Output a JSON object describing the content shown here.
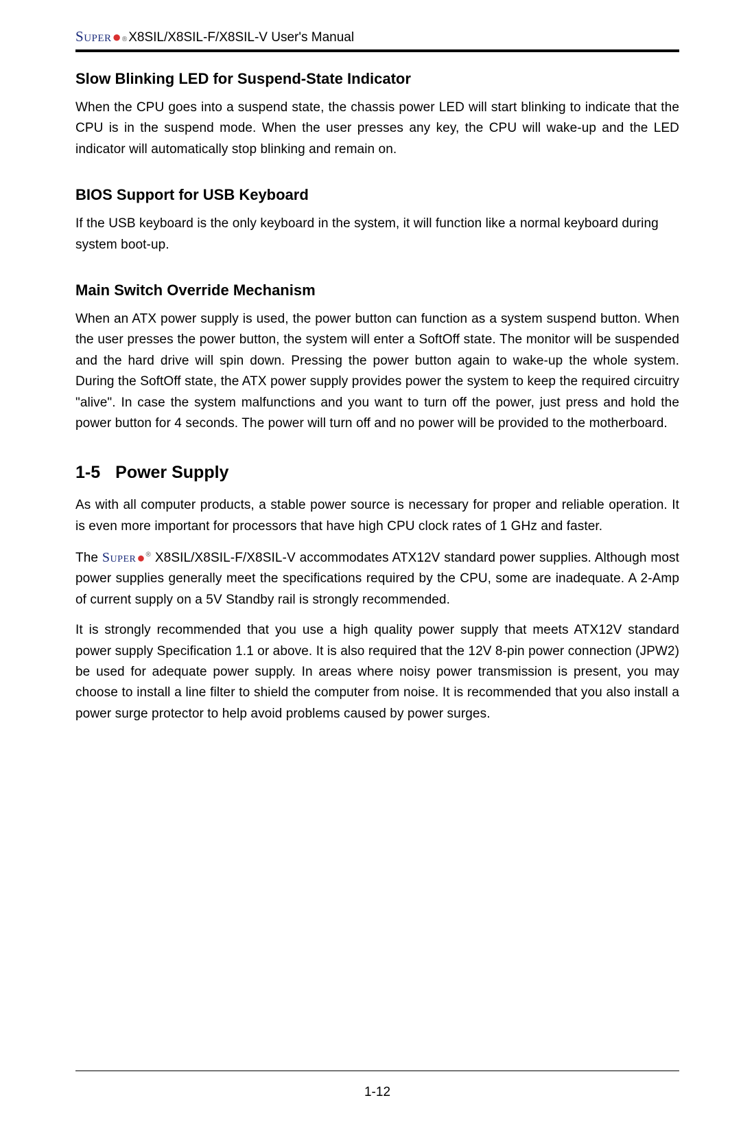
{
  "header": {
    "logo_text": "SUPER",
    "manual_title": "X8SIL/X8SIL-F/X8SIL-V User's Manual"
  },
  "sections": [
    {
      "heading": "Slow Blinking LED for Suspend-State Indicator",
      "paragraphs": [
        "When the CPU goes into a suspend state, the chassis power LED will start blinking to indicate that the CPU is in the suspend mode. When the user presses any key, the CPU will wake-up and the LED indicator will automatically stop blinking and remain on."
      ]
    },
    {
      "heading": "BIOS Support for USB Keyboard",
      "paragraphs": [
        "If the USB keyboard is the only keyboard in the system, it will function like a normal keyboard during system boot-up."
      ]
    },
    {
      "heading": "Main Switch Override Mechanism",
      "paragraphs": [
        "When an ATX power supply is used, the power button can function as a system suspend button. When the user presses the power button, the system will enter a SoftOff state. The monitor will be suspended and the hard drive will spin down. Pressing the power button again to wake-up the whole system. During the SoftOff state, the ATX power supply provides power the system to keep the required circuitry \"alive\". In case the system malfunctions and you want to turn off the power, just press and hold the power button for 4 seconds. The power will turn off and no power will be provided to the motherboard."
      ]
    }
  ],
  "major_section": {
    "number": "1-5",
    "title": "Power Supply",
    "paragraphs": [
      "As with all computer products, a stable power source is necessary for proper and reliable operation. It is even more important for processors that have high CPU clock rates of 1 GHz and faster.",
      "__LOGO__ X8SIL/X8SIL-F/X8SIL-V accommodates ATX12V standard power supplies. Although most power supplies generally meet the specifications required by the CPU, some are inadequate. A 2-Amp of current supply on a 5V Standby rail is strongly recommended.",
      "It is strongly recommended that you use a high quality power supply that meets ATX12V standard power supply Specification 1.1 or above. It is also required that the 12V 8-pin power connection (JPW2) be used for adequate power supply. In areas where noisy power transmission is present, you may choose to install a line filter to shield the computer from noise. It is recommended that you also install a power surge protector to help avoid problems caused by power surges."
    ],
    "para2_prefix": "The ",
    "para2_rest": " X8SIL/X8SIL-F/X8SIL-V accommodates ATX12V standard power supplies. Although most power supplies generally meet the specifications required by the CPU, some are inadequate. A 2-Amp of current supply on a 5V Standby rail is strongly recommended."
  },
  "page_number": "1-12",
  "colors": {
    "logo_blue": "#1a2b7a",
    "logo_red": "#d93030",
    "text": "#000000",
    "background": "#ffffff"
  },
  "typography": {
    "body_fontsize": 19,
    "subheading_fontsize": 22,
    "section_heading_fontsize": 25,
    "line_height": 1.6
  }
}
